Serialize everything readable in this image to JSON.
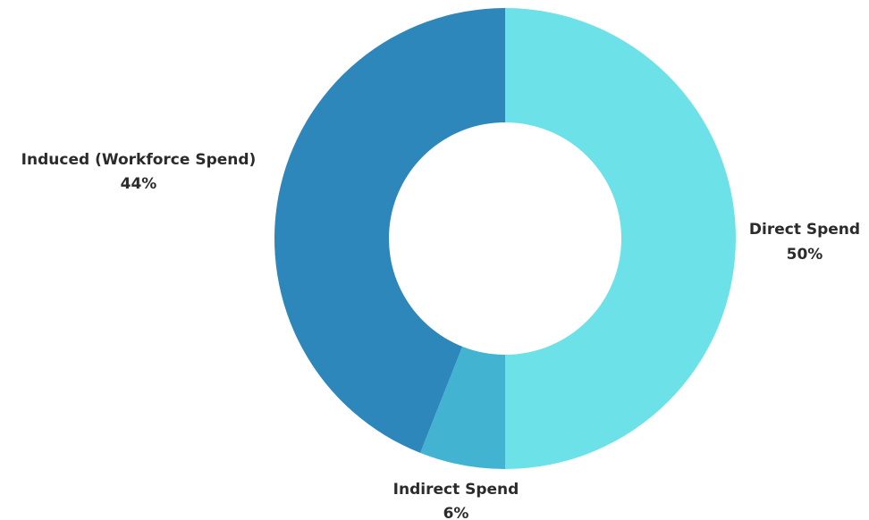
{
  "chart_data": {
    "type": "pie",
    "donut": true,
    "title": "",
    "slices": [
      {
        "label": "Direct Spend",
        "value": 50,
        "value_label": "50%",
        "color": "#6ce2e8"
      },
      {
        "label": "Indirect Spend",
        "value": 6,
        "value_label": "6%",
        "color": "#42b4d2"
      },
      {
        "label": "Induced (Workforce Spend)",
        "value": 44,
        "value_label": "44%",
        "color": "#2e87ba"
      }
    ],
    "start": "top",
    "direction": "clockwise",
    "legend": "none"
  }
}
